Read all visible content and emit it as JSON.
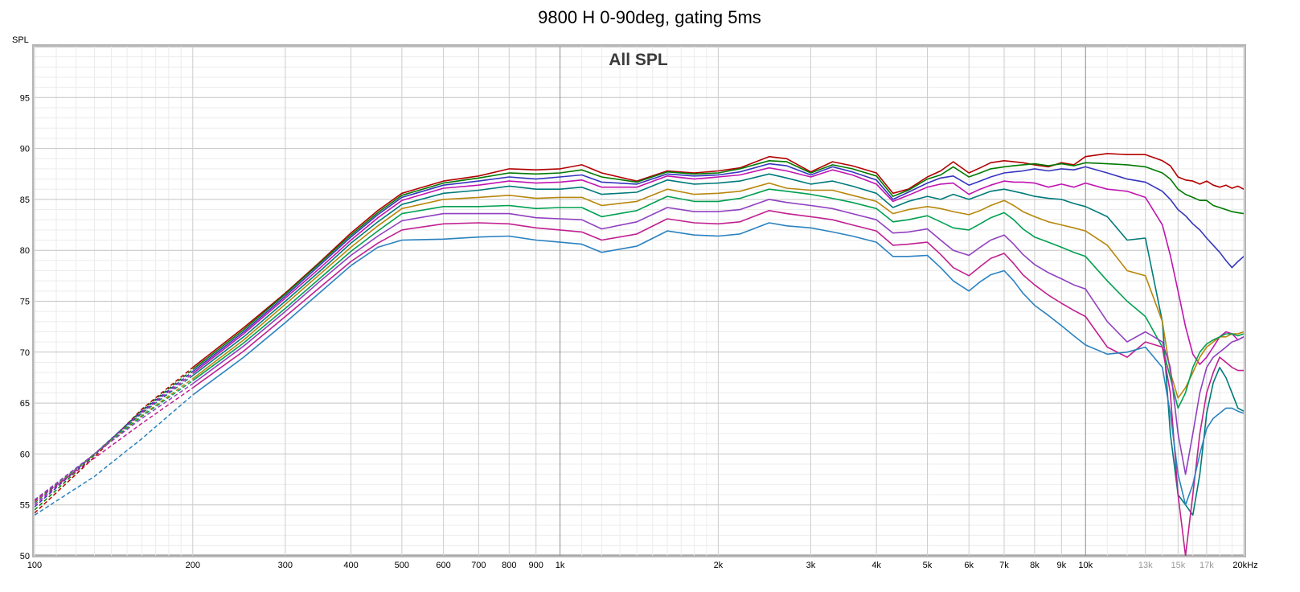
{
  "chart_data": {
    "type": "line",
    "title": "9800 H 0-90deg, gating 5ms",
    "subtitle": "All SPL",
    "ylabel": "SPL",
    "xlabel": "",
    "x_scale": "log",
    "xlim": [
      100,
      20000
    ],
    "ylim": [
      50,
      100
    ],
    "grid": true,
    "y_ticks": [
      50,
      55,
      60,
      65,
      70,
      75,
      80,
      85,
      90,
      95
    ],
    "y_tick_labels": [
      "50",
      "55",
      "60",
      "65",
      "70",
      "75",
      "80",
      "85",
      "90",
      "95"
    ],
    "x_ticks": [
      100,
      200,
      300,
      400,
      500,
      600,
      700,
      800,
      900,
      1000,
      2000,
      3000,
      4000,
      5000,
      6000,
      7000,
      8000,
      9000,
      10000,
      13000,
      15000,
      17000,
      20000
    ],
    "x_tick_labels": [
      "100",
      "200",
      "300",
      "400",
      "500",
      "600",
      "700",
      "800",
      "900",
      "1k",
      "2k",
      "3k",
      "4k",
      "5k",
      "6k",
      "7k",
      "8k",
      "9k",
      "10k",
      "13k",
      "15k",
      "17k",
      "20kHz"
    ],
    "faint_x_tick_labels": [
      "13k",
      "15k",
      "17k"
    ],
    "dashed_below_hz": 200,
    "x": [
      100,
      130,
      160,
      200,
      250,
      300,
      350,
      400,
      450,
      500,
      600,
      700,
      800,
      900,
      1000,
      1100,
      1200,
      1400,
      1600,
      1800,
      2000,
      2200,
      2500,
      2700,
      3000,
      3300,
      3600,
      4000,
      4300,
      4600,
      5000,
      5300,
      5600,
      6000,
      6300,
      6600,
      7000,
      7300,
      7600,
      8000,
      8500,
      9000,
      9500,
      10000,
      11000,
      12000,
      13000,
      14000,
      14500,
      15000,
      15500,
      16000,
      16500,
      17000,
      17500,
      18000,
      18500,
      19000,
      19500,
      20000
    ],
    "series": [
      {
        "color": "#b30000",
        "values": [
          54.2,
          59.7,
          64.4,
          68.5,
          72.4,
          75.8,
          78.9,
          81.7,
          83.9,
          85.6,
          86.8,
          87.3,
          88.0,
          87.9,
          88.0,
          88.4,
          87.6,
          86.8,
          87.8,
          87.6,
          87.8,
          88.1,
          89.2,
          89.0,
          87.7,
          88.7,
          88.3,
          87.6,
          85.6,
          86.0,
          87.2,
          87.8,
          88.7,
          87.6,
          88.1,
          88.6,
          88.8,
          88.7,
          88.6,
          88.4,
          88.2,
          88.6,
          88.4,
          89.2,
          89.5,
          89.4,
          89.4,
          88.8,
          88.3,
          87.2,
          86.9,
          86.8,
          86.5,
          86.8,
          86.4,
          86.2,
          86.4,
          86.1,
          86.3,
          86.0
        ]
      },
      {
        "color": "#007a00",
        "values": [
          54.5,
          59.9,
          64.3,
          68.3,
          72.2,
          75.7,
          78.8,
          81.5,
          83.7,
          85.4,
          86.6,
          87.1,
          87.6,
          87.5,
          87.6,
          87.9,
          87.2,
          86.7,
          87.7,
          87.5,
          87.6,
          88.0,
          88.8,
          88.7,
          87.6,
          88.4,
          88.0,
          87.3,
          85.3,
          85.9,
          87.0,
          87.4,
          88.2,
          87.2,
          87.6,
          88.0,
          88.2,
          88.3,
          88.4,
          88.5,
          88.3,
          88.5,
          88.3,
          88.6,
          88.5,
          88.4,
          88.2,
          87.6,
          87.0,
          86.0,
          85.5,
          85.2,
          84.9,
          84.9,
          84.4,
          84.2,
          84.0,
          83.8,
          83.7,
          83.6
        ]
      },
      {
        "color": "#3535c0",
        "values": [
          54.8,
          60.0,
          64.2,
          68.1,
          72.0,
          75.5,
          78.6,
          81.3,
          83.5,
          85.2,
          86.4,
          86.8,
          87.2,
          87.0,
          87.2,
          87.4,
          86.7,
          86.5,
          87.5,
          87.3,
          87.4,
          87.7,
          88.5,
          88.3,
          87.4,
          88.2,
          87.7,
          86.9,
          85.0,
          85.7,
          86.6,
          87.1,
          87.3,
          86.4,
          86.8,
          87.2,
          87.6,
          87.7,
          87.8,
          88.0,
          87.8,
          88.0,
          87.9,
          88.2,
          87.6,
          87.0,
          86.7,
          85.8,
          85.0,
          84.0,
          83.4,
          82.6,
          82.0,
          81.2,
          80.5,
          79.8,
          79.0,
          78.3,
          78.9,
          79.4
        ]
      },
      {
        "color": "#c014b0",
        "values": [
          55.0,
          60.0,
          64.1,
          67.9,
          71.8,
          75.3,
          78.3,
          81.0,
          83.2,
          84.9,
          86.1,
          86.4,
          86.8,
          86.6,
          86.7,
          86.9,
          86.2,
          86.2,
          87.3,
          87.0,
          87.2,
          87.4,
          88.1,
          87.8,
          87.2,
          87.9,
          87.4,
          86.5,
          84.8,
          85.4,
          86.2,
          86.5,
          86.6,
          85.5,
          86.0,
          86.4,
          86.8,
          86.7,
          86.7,
          86.6,
          86.2,
          86.5,
          86.2,
          86.6,
          86.0,
          85.8,
          85.2,
          82.5,
          79.5,
          76.0,
          72.5,
          69.8,
          68.8,
          69.5,
          70.5,
          71.5,
          72.0,
          71.8,
          71.2,
          71.5
        ]
      },
      {
        "color": "#007a7a",
        "values": [
          55.2,
          60.0,
          64.0,
          67.7,
          71.5,
          75.0,
          78.0,
          80.7,
          82.8,
          84.5,
          85.6,
          85.9,
          86.3,
          86.0,
          86.0,
          86.2,
          85.5,
          85.7,
          86.9,
          86.5,
          86.6,
          86.8,
          87.5,
          87.1,
          86.5,
          86.8,
          86.3,
          85.6,
          84.2,
          84.8,
          85.3,
          85.0,
          85.5,
          85.0,
          85.4,
          85.8,
          86.0,
          85.8,
          85.6,
          85.3,
          85.1,
          85.0,
          84.6,
          84.3,
          83.3,
          81.0,
          81.2,
          73.0,
          62.0,
          56.0,
          55.0,
          54.0,
          58.0,
          64.0,
          67.0,
          68.5,
          67.5,
          66.0,
          64.5,
          64.2
        ]
      },
      {
        "color": "#b8860b",
        "values": [
          55.3,
          60.0,
          63.8,
          67.4,
          71.2,
          74.7,
          77.7,
          80.3,
          82.4,
          84.1,
          85.0,
          85.2,
          85.4,
          85.1,
          85.2,
          85.2,
          84.4,
          84.8,
          86.0,
          85.5,
          85.6,
          85.8,
          86.6,
          86.1,
          85.9,
          85.9,
          85.4,
          84.8,
          83.6,
          84.0,
          84.3,
          84.1,
          83.8,
          83.5,
          83.9,
          84.4,
          84.9,
          84.4,
          83.8,
          83.3,
          82.8,
          82.5,
          82.2,
          81.9,
          80.5,
          78.0,
          77.5,
          73.0,
          68.0,
          65.5,
          66.5,
          68.0,
          69.5,
          70.5,
          71.0,
          71.5,
          71.5,
          71.8,
          71.8,
          72.0
        ]
      },
      {
        "color": "#00a050",
        "values": [
          55.4,
          60.0,
          63.7,
          67.2,
          70.9,
          74.3,
          77.3,
          79.9,
          81.9,
          83.6,
          84.3,
          84.3,
          84.4,
          84.1,
          84.2,
          84.2,
          83.3,
          83.9,
          85.3,
          84.8,
          84.8,
          85.1,
          86.0,
          85.8,
          85.5,
          85.1,
          84.7,
          84.1,
          82.8,
          83.0,
          83.4,
          82.8,
          82.2,
          82.0,
          82.6,
          83.2,
          83.7,
          83.0,
          82.1,
          81.3,
          80.8,
          80.3,
          79.8,
          79.4,
          77.0,
          75.0,
          73.5,
          70.5,
          67.5,
          64.5,
          66.0,
          68.5,
          70.0,
          70.8,
          71.2,
          71.5,
          71.8,
          71.8,
          71.6,
          71.8
        ]
      },
      {
        "color": "#9040c0",
        "values": [
          55.5,
          60.0,
          63.5,
          66.9,
          70.6,
          74.0,
          77.0,
          79.5,
          81.4,
          82.9,
          83.6,
          83.6,
          83.6,
          83.2,
          83.1,
          83.0,
          82.1,
          82.8,
          84.2,
          83.8,
          83.8,
          84.0,
          85.0,
          84.7,
          84.4,
          84.1,
          83.6,
          83.0,
          81.7,
          81.8,
          82.1,
          81.0,
          80.0,
          79.5,
          80.3,
          81.0,
          81.5,
          80.6,
          79.6,
          78.6,
          77.8,
          77.2,
          76.6,
          76.2,
          73.0,
          71.0,
          72.0,
          71.0,
          68.5,
          62.0,
          58.0,
          62.0,
          66.0,
          68.5,
          69.5,
          70.0,
          70.5,
          71.0,
          71.2,
          71.5
        ]
      },
      {
        "color": "#c02090",
        "values": [
          55.4,
          59.6,
          63.0,
          66.5,
          70.1,
          73.5,
          76.4,
          78.9,
          80.7,
          82.0,
          82.6,
          82.7,
          82.6,
          82.2,
          82.0,
          81.8,
          81.0,
          81.6,
          83.1,
          82.7,
          82.6,
          82.8,
          83.9,
          83.6,
          83.3,
          83.0,
          82.5,
          81.9,
          80.5,
          80.6,
          80.8,
          79.6,
          78.3,
          77.5,
          78.4,
          79.2,
          79.7,
          78.7,
          77.6,
          76.6,
          75.6,
          74.8,
          74.1,
          73.5,
          70.5,
          69.5,
          71.0,
          70.5,
          66.0,
          56.0,
          50.0,
          56.0,
          62.0,
          66.0,
          68.0,
          69.5,
          69.0,
          68.5,
          68.2,
          68.2
        ]
      },
      {
        "color": "#2a82c0",
        "values": [
          54.0,
          57.8,
          61.5,
          65.8,
          69.5,
          72.9,
          75.9,
          78.5,
          80.3,
          81.0,
          81.1,
          81.3,
          81.4,
          81.0,
          80.8,
          80.6,
          79.8,
          80.4,
          81.9,
          81.5,
          81.4,
          81.6,
          82.7,
          82.4,
          82.2,
          81.8,
          81.4,
          80.8,
          79.4,
          79.4,
          79.5,
          78.3,
          77.0,
          76.0,
          76.9,
          77.6,
          78.0,
          77.0,
          75.8,
          74.6,
          73.6,
          72.6,
          71.6,
          70.7,
          69.8,
          70.0,
          70.5,
          68.5,
          64.0,
          58.0,
          55.0,
          57.0,
          60.0,
          62.5,
          63.5,
          64.0,
          64.5,
          64.5,
          64.2,
          64.0
        ]
      }
    ]
  }
}
